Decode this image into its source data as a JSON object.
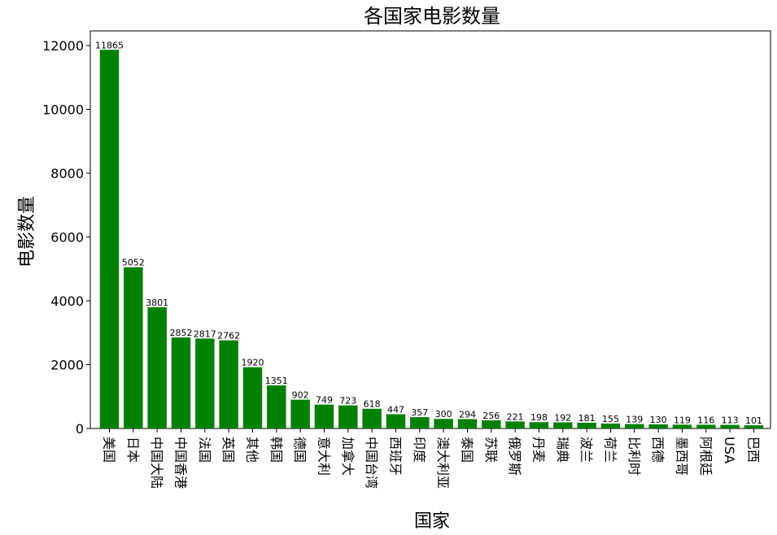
{
  "chart_data": {
    "type": "bar",
    "title": "各国家电影数量",
    "x_label": "国家",
    "y_label": "电影数量",
    "categories": [
      "美国",
      "日本",
      "中国大陆",
      "中国香港",
      "法国",
      "英国",
      "其他",
      "韩国",
      "德国",
      "意大利",
      "加拿大",
      "中国台湾",
      "西班牙",
      "印度",
      "澳大利亚",
      "泰国",
      "苏联",
      "俄罗斯",
      "丹麦",
      "瑞典",
      "波兰",
      "荷兰",
      "比利时",
      "西德",
      "墨西哥",
      "阿根廷",
      "USA",
      "巴西"
    ],
    "values": [
      11865,
      5052,
      3801,
      2852,
      2817,
      2762,
      1920,
      1351,
      902,
      749,
      723,
      618,
      447,
      357,
      300,
      294,
      256,
      221,
      198,
      192,
      181,
      155,
      139,
      130,
      119,
      116,
      113,
      101
    ],
    "color": "#008000",
    "ylim": [
      0,
      12458
    ],
    "yticks": [
      0,
      2000,
      4000,
      6000,
      8000,
      10000,
      12000
    ]
  }
}
